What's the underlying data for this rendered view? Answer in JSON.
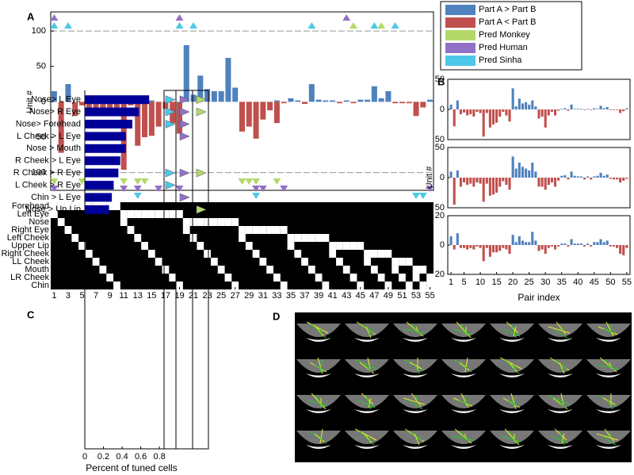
{
  "panel_labels": [
    "A",
    "B",
    "C",
    "D"
  ],
  "chart_data": [
    {
      "type": "bar",
      "ylabel": "Unit #",
      "x": [
        1,
        2,
        3,
        4,
        5,
        6,
        7,
        8,
        9,
        10,
        11,
        12,
        13,
        14,
        15,
        16,
        17,
        18,
        19,
        20,
        21,
        22,
        23,
        24,
        25,
        26,
        27,
        28,
        29,
        30,
        31,
        32,
        33,
        34,
        35,
        36,
        37,
        38,
        39,
        40,
        41,
        42,
        43,
        44,
        45,
        46,
        47,
        48,
        49,
        50,
        51,
        52,
        53,
        54,
        55
      ],
      "xlim": [
        0.5,
        55.5
      ],
      "xticks": [
        1,
        3,
        5,
        7,
        9,
        11,
        13,
        15,
        17,
        19,
        21,
        23,
        25,
        27,
        29,
        31,
        33,
        35,
        37,
        39,
        41,
        43,
        45,
        47,
        49,
        51,
        53,
        55
      ],
      "ylim": [
        -125,
        127
      ],
      "yticks": [
        {
          "value": -100,
          "label": "100"
        },
        {
          "value": -50,
          "label": "50"
        },
        0,
        50,
        100
      ],
      "reference_lines": [
        100,
        -100
      ],
      "series": [
        {
          "name": "Part A > Part B",
          "color": "#4f81bd",
          "values": [
            15,
            null,
            25,
            null,
            null,
            null,
            null,
            4,
            null,
            null,
            null,
            null,
            null,
            null,
            2,
            null,
            null,
            null,
            null,
            80,
            10,
            37,
            18,
            15,
            15,
            62,
            20,
            null,
            null,
            null,
            null,
            null,
            2,
            null,
            5,
            2,
            null,
            25,
            3,
            2,
            2,
            null,
            2,
            null,
            3,
            3,
            22,
            5,
            15,
            null,
            null,
            null,
            null,
            null,
            3
          ]
        },
        {
          "name": "Part A < Part B",
          "color": "#c0504d",
          "values": [
            null,
            -72,
            null,
            -20,
            -5,
            -12,
            -14,
            -15,
            -10,
            -10,
            -96,
            -5,
            -62,
            -50,
            -48,
            -35,
            -10,
            -30,
            -45,
            null,
            null,
            null,
            null,
            null,
            null,
            null,
            null,
            -42,
            -35,
            -52,
            -25,
            -12,
            -30,
            -2,
            null,
            null,
            -3,
            null,
            null,
            null,
            null,
            -2,
            null,
            -2,
            null,
            null,
            null,
            null,
            null,
            -2,
            -2,
            -2,
            -20,
            -8,
            null
          ]
        }
      ],
      "markers": [
        {
          "name": "Pred Monkey",
          "color": "#b5d86a",
          "top_x": [
            44,
            48
          ],
          "bottom_x": [
            1,
            5,
            11,
            13,
            14,
            28,
            29,
            30,
            33
          ]
        },
        {
          "name": "Pred Human",
          "color": "#9370c8",
          "top_x": [
            1,
            19,
            43
          ],
          "bottom_x": [
            1,
            11,
            13,
            16,
            19,
            30,
            31,
            34,
            55
          ]
        },
        {
          "name": "Pred Sinha",
          "color": "#4dc8e8",
          "top_x": [
            1,
            3,
            19,
            21,
            38,
            47,
            50
          ],
          "bottom_x": [
            13,
            30,
            53,
            54
          ]
        }
      ],
      "feature_rows": [
        "Forehead",
        "Left Eye",
        "Nose",
        "Right Eye",
        "Left Cheek",
        "Upper Lip",
        "Right Cheek",
        "LL Cheek",
        "Mouth",
        "LR Cheek",
        "Chin"
      ]
    },
    {
      "type": "bar",
      "colors": {
        "positive": "#4f81bd",
        "negative": "#c0504d"
      },
      "xlim": [
        0,
        56
      ],
      "ylim": [
        -50,
        50
      ],
      "yticks": [
        {
          "value": -50,
          "label": "50"
        },
        0,
        50
      ],
      "values": [
        8,
        -28,
        15,
        -8,
        -5,
        -10,
        -8,
        -12,
        -4,
        -6,
        -45,
        -6,
        -30,
        -25,
        -22,
        -12,
        -4,
        -10,
        -20,
        35,
        5,
        18,
        10,
        12,
        8,
        15,
        5,
        -15,
        -12,
        -30,
        -10,
        -4,
        -10,
        -2,
        1,
        2,
        -2,
        8,
        1,
        1,
        1,
        -1,
        1,
        -1,
        2,
        1,
        6,
        2,
        4,
        -1,
        -1,
        -1,
        -6,
        -3,
        2
      ]
    },
    {
      "type": "bar",
      "ylabel": "Unit #",
      "colors": {
        "positive": "#4f81bd",
        "negative": "#c0504d"
      },
      "xlim": [
        0,
        56
      ],
      "ylim": [
        -50,
        50
      ],
      "yticks": [
        {
          "value": -50,
          "label": "50"
        },
        0,
        50
      ],
      "values": [
        10,
        -45,
        12,
        -15,
        -8,
        -12,
        -10,
        -15,
        -8,
        -10,
        -40,
        -10,
        -30,
        -28,
        -25,
        -15,
        -6,
        -12,
        -20,
        35,
        15,
        25,
        18,
        15,
        12,
        25,
        10,
        -15,
        -15,
        -20,
        -12,
        -8,
        -15,
        -5,
        3,
        4,
        -3,
        10,
        3,
        2,
        2,
        -3,
        2,
        -3,
        2,
        3,
        8,
        3,
        5,
        -2,
        -3,
        -3,
        -8,
        -5,
        -2
      ]
    },
    {
      "type": "bar",
      "xlabel": "Pair index",
      "colors": {
        "positive": "#4f81bd",
        "negative": "#c0504d"
      },
      "xlim": [
        0,
        56
      ],
      "xticks": [
        1,
        5,
        10,
        15,
        20,
        25,
        30,
        35,
        40,
        45,
        50,
        55
      ],
      "ylim": [
        -20,
        20
      ],
      "yticks": [
        {
          "value": -20,
          "label": "20"
        },
        0,
        20
      ],
      "values": [
        6,
        -3,
        8,
        -2,
        -2,
        -3,
        -2,
        -3,
        -1,
        -2,
        -11,
        -2,
        -8,
        -5,
        -5,
        -4,
        -2,
        -3,
        -6,
        7,
        2,
        6,
        3,
        2,
        2,
        9,
        3,
        -4,
        -3,
        -6,
        -2,
        -1,
        -3,
        -1,
        1,
        1,
        -1,
        4,
        1,
        1,
        1,
        -1,
        1,
        -1,
        2,
        2,
        4,
        2,
        3,
        -1,
        -1,
        -2,
        -6,
        -7,
        -2
      ]
    },
    {
      "type": "barh",
      "xlabel": "Percent of tuned cells",
      "color": "#000099",
      "categories": [
        "Nose> L Eye",
        "Nose> R Eye",
        "Nose> Forehead",
        "L Cheek > L Eye",
        "Nose > Mouth",
        "R Cheek > L Eye",
        "R Cheek > R Eye",
        "L Cheek > R Eye",
        "Chin > L Eye",
        "Nose > Up Lip"
      ],
      "values": [
        0.69,
        0.58,
        0.51,
        0.44,
        0.44,
        0.38,
        0.36,
        0.31,
        0.29,
        0.26
      ],
      "xlim": [
        0,
        0.85
      ],
      "xticks": [
        0,
        0.2,
        0.4,
        0.6,
        0.8
      ],
      "markers": [
        {
          "color": "#4dc8e8",
          "rows": [
            0,
            1,
            2,
            6,
            7
          ]
        },
        {
          "color": "#9370c8",
          "rows": [
            0,
            1,
            2,
            3,
            6,
            8
          ]
        },
        {
          "color": "#b5d86a",
          "rows": [
            0,
            1,
            6,
            9
          ]
        }
      ]
    }
  ]
}
